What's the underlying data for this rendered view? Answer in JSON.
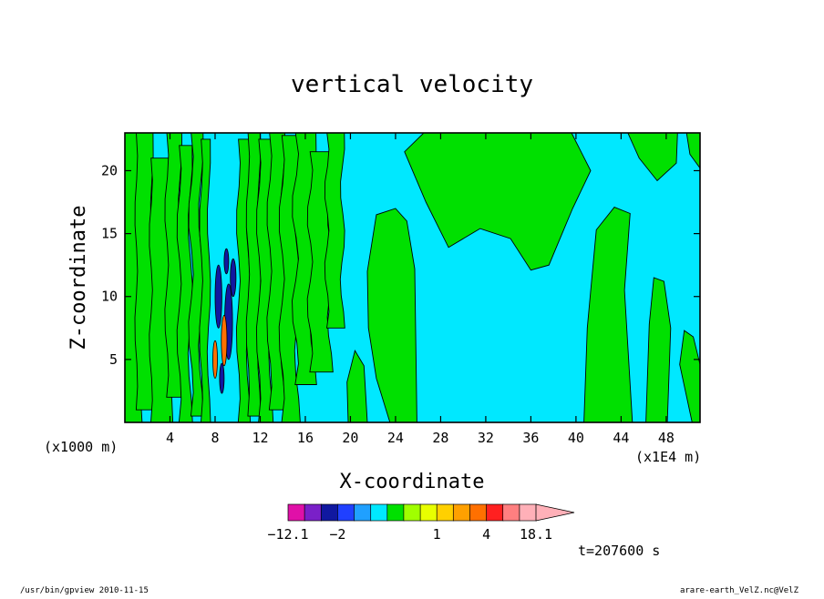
{
  "chart_data": {
    "type": "heatmap",
    "title": "vertical velocity",
    "xlabel": "X-coordinate",
    "ylabel": "Z-coordinate",
    "x_scale_note": "(x1000 m)",
    "x_range_note": "(x1E4 m)",
    "xlim": [
      0,
      51
    ],
    "ylim": [
      0,
      23
    ],
    "xticks": [
      4,
      8,
      12,
      16,
      20,
      24,
      28,
      32,
      36,
      40,
      44,
      48
    ],
    "yticks": [
      5,
      10,
      15,
      20
    ],
    "colorbar": {
      "labels": [
        {
          "value": -12.1,
          "text": "−12.1"
        },
        {
          "value": -2,
          "text": "−2"
        },
        {
          "value": 1,
          "text": "1"
        },
        {
          "value": 4,
          "text": "4"
        },
        {
          "value": 18.1,
          "text": "18.1"
        }
      ],
      "levels": [
        -12.1,
        -6,
        -3,
        -2,
        -1.5,
        -1,
        -0.5,
        0,
        0.5,
        1,
        1.5,
        2,
        4,
        8,
        12,
        18.1
      ],
      "colors": [
        "#e010a8",
        "#7a20c8",
        "#1018a0",
        "#2040ff",
        "#20a0ff",
        "#00e8ff",
        "#00e000",
        "#a0ff00",
        "#e8ff00",
        "#ffd000",
        "#ffa000",
        "#ff7000",
        "#ff2020",
        "#ff7f80",
        "#ffb0b8"
      ],
      "extend": "max"
    },
    "field_colors": {
      "negative": "#00e8ff",
      "positive": "#00e000",
      "strong_negative": "#1018a0",
      "strong_positive": "#ff7000"
    },
    "annotation": "t=207600 s",
    "grid": false
  },
  "footer": {
    "left": "/usr/bin/gpview   2010-11-15",
    "right": "arare-earth_VelZ.nc@VelZ"
  }
}
